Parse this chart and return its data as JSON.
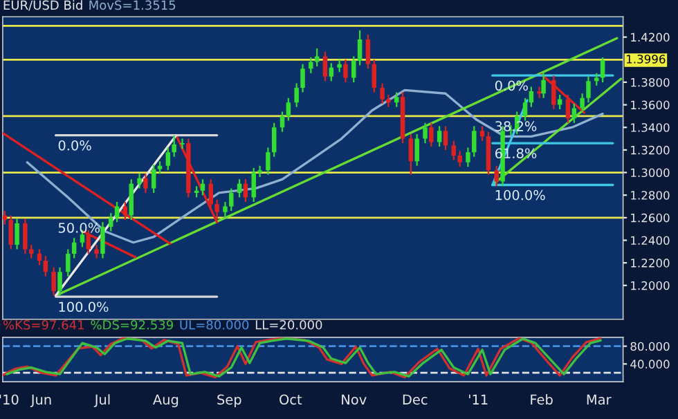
{
  "chart_data": [
    {
      "type": "candlestick",
      "title": "EUR/USD Bid",
      "x": [
        "2010-05-14",
        "2010-05-17",
        "2010-05-20",
        "2010-05-24",
        "2010-05-27",
        "2010-05-31",
        "2010-06-03",
        "2010-06-07",
        "2010-06-10",
        "2010-06-14",
        "2010-06-17",
        "2010-06-21",
        "2010-06-24",
        "2010-06-28",
        "2010-07-01",
        "2010-07-05",
        "2010-07-08",
        "2010-07-12",
        "2010-07-15",
        "2010-07-19",
        "2010-07-22",
        "2010-07-26",
        "2010-07-29",
        "2010-08-02",
        "2010-08-05",
        "2010-08-09",
        "2010-08-12",
        "2010-08-16",
        "2010-08-19",
        "2010-08-23",
        "2010-08-26",
        "2010-08-30",
        "2010-09-02",
        "2010-09-06",
        "2010-09-09",
        "2010-09-13",
        "2010-09-16",
        "2010-09-20",
        "2010-09-23",
        "2010-09-27",
        "2010-09-30",
        "2010-10-04",
        "2010-10-07",
        "2010-10-11",
        "2010-10-14",
        "2010-10-18",
        "2010-10-21",
        "2010-10-25",
        "2010-10-28",
        "2010-11-01",
        "2010-11-04",
        "2010-11-08",
        "2010-11-11",
        "2010-11-15",
        "2010-11-18",
        "2010-11-22",
        "2010-11-25",
        "2010-11-29",
        "2010-12-02",
        "2010-12-06",
        "2010-12-09",
        "2010-12-13",
        "2010-12-16",
        "2010-12-20",
        "2010-12-23",
        "2010-12-27",
        "2010-12-30",
        "2011-01-03",
        "2011-01-06",
        "2011-01-10",
        "2011-01-13",
        "2011-01-17",
        "2011-01-20",
        "2011-01-24",
        "2011-01-27",
        "2011-01-31",
        "2011-02-02",
        "2011-02-07",
        "2011-02-10",
        "2011-02-14",
        "2011-02-17",
        "2011-02-21",
        "2011-02-24",
        "2011-02-28",
        "2011-03-03"
      ],
      "ohlc": [
        [
          1.262,
          1.266,
          1.254,
          1.258
        ],
        [
          1.258,
          1.262,
          1.232,
          1.236
        ],
        [
          1.236,
          1.259,
          1.232,
          1.255
        ],
        [
          1.255,
          1.259,
          1.228,
          1.232
        ],
        [
          1.232,
          1.236,
          1.224,
          1.228
        ],
        [
          1.228,
          1.232,
          1.218,
          1.222
        ],
        [
          1.222,
          1.226,
          1.208,
          1.212
        ],
        [
          1.212,
          1.216,
          1.191,
          1.195
        ],
        [
          1.195,
          1.216,
          1.191,
          1.212
        ],
        [
          1.212,
          1.232,
          1.208,
          1.228
        ],
        [
          1.228,
          1.242,
          1.224,
          1.238
        ],
        [
          1.238,
          1.249,
          1.234,
          1.245
        ],
        [
          1.245,
          1.249,
          1.228,
          1.232
        ],
        [
          1.232,
          1.236,
          1.224,
          1.228
        ],
        [
          1.228,
          1.256,
          1.224,
          1.252
        ],
        [
          1.252,
          1.264,
          1.248,
          1.26
        ],
        [
          1.26,
          1.274,
          1.256,
          1.27
        ],
        [
          1.27,
          1.274,
          1.258,
          1.262
        ],
        [
          1.262,
          1.294,
          1.258,
          1.29
        ],
        [
          1.29,
          1.299,
          1.286,
          1.295
        ],
        [
          1.295,
          1.299,
          1.282,
          1.286
        ],
        [
          1.286,
          1.307,
          1.282,
          1.303
        ],
        [
          1.303,
          1.31,
          1.299,
          1.306
        ],
        [
          1.306,
          1.322,
          1.302,
          1.318
        ],
        [
          1.318,
          1.333,
          1.314,
          1.325
        ],
        [
          1.325,
          1.33,
          1.321,
          1.326
        ],
        [
          1.326,
          1.33,
          1.278,
          1.282
        ],
        [
          1.282,
          1.288,
          1.278,
          1.284
        ],
        [
          1.284,
          1.294,
          1.28,
          1.29
        ],
        [
          1.29,
          1.294,
          1.268,
          1.272
        ],
        [
          1.272,
          1.276,
          1.259,
          1.265
        ],
        [
          1.265,
          1.274,
          1.261,
          1.27
        ],
        [
          1.27,
          1.286,
          1.266,
          1.282
        ],
        [
          1.282,
          1.294,
          1.278,
          1.29
        ],
        [
          1.29,
          1.294,
          1.274,
          1.278
        ],
        [
          1.278,
          1.304,
          1.274,
          1.3
        ],
        [
          1.3,
          1.306,
          1.296,
          1.302
        ],
        [
          1.302,
          1.322,
          1.298,
          1.318
        ],
        [
          1.318,
          1.344,
          1.314,
          1.34
        ],
        [
          1.34,
          1.354,
          1.336,
          1.35
        ],
        [
          1.35,
          1.366,
          1.346,
          1.362
        ],
        [
          1.362,
          1.379,
          1.358,
          1.375
        ],
        [
          1.375,
          1.396,
          1.371,
          1.392
        ],
        [
          1.392,
          1.402,
          1.388,
          1.398
        ],
        [
          1.398,
          1.41,
          1.394,
          1.403
        ],
        [
          1.403,
          1.407,
          1.381,
          1.385
        ],
        [
          1.385,
          1.397,
          1.381,
          1.393
        ],
        [
          1.393,
          1.4,
          1.389,
          1.396
        ],
        [
          1.396,
          1.4,
          1.38,
          1.384
        ],
        [
          1.384,
          1.403,
          1.38,
          1.399
        ],
        [
          1.399,
          1.426,
          1.395,
          1.418
        ],
        [
          1.418,
          1.422,
          1.392,
          1.396
        ],
        [
          1.396,
          1.4,
          1.371,
          1.375
        ],
        [
          1.375,
          1.379,
          1.361,
          1.365
        ],
        [
          1.365,
          1.369,
          1.358,
          1.362
        ],
        [
          1.362,
          1.371,
          1.358,
          1.367
        ],
        [
          1.367,
          1.371,
          1.326,
          1.33
        ],
        [
          1.33,
          1.334,
          1.298,
          1.31
        ],
        [
          1.31,
          1.334,
          1.306,
          1.33
        ],
        [
          1.33,
          1.344,
          1.326,
          1.34
        ],
        [
          1.34,
          1.344,
          1.323,
          1.327
        ],
        [
          1.327,
          1.341,
          1.323,
          1.337
        ],
        [
          1.337,
          1.341,
          1.32,
          1.324
        ],
        [
          1.324,
          1.328,
          1.311,
          1.315
        ],
        [
          1.315,
          1.319,
          1.305,
          1.309
        ],
        [
          1.309,
          1.322,
          1.305,
          1.318
        ],
        [
          1.318,
          1.341,
          1.314,
          1.337
        ],
        [
          1.337,
          1.341,
          1.328,
          1.332
        ],
        [
          1.332,
          1.336,
          1.298,
          1.302
        ],
        [
          1.302,
          1.306,
          1.288,
          1.292
        ],
        [
          1.292,
          1.341,
          1.288,
          1.337
        ],
        [
          1.337,
          1.342,
          1.333,
          1.338
        ],
        [
          1.338,
          1.354,
          1.334,
          1.35
        ],
        [
          1.35,
          1.366,
          1.346,
          1.362
        ],
        [
          1.362,
          1.376,
          1.358,
          1.372
        ],
        [
          1.372,
          1.376,
          1.366,
          1.37
        ],
        [
          1.37,
          1.388,
          1.366,
          1.382
        ],
        [
          1.382,
          1.386,
          1.356,
          1.36
        ],
        [
          1.36,
          1.369,
          1.356,
          1.365
        ],
        [
          1.365,
          1.369,
          1.344,
          1.348
        ],
        [
          1.348,
          1.361,
          1.344,
          1.357
        ],
        [
          1.357,
          1.37,
          1.353,
          1.366
        ],
        [
          1.366,
          1.385,
          1.362,
          1.381
        ],
        [
          1.381,
          1.388,
          1.377,
          1.384
        ],
        [
          1.384,
          1.402,
          1.38,
          1.3996
        ]
      ],
      "series": [
        {
          "type": "line",
          "name": "MovS=1.3515",
          "color": "#8fb0d0",
          "x": [
            "2010-05-25",
            "2010-06-14",
            "2010-07-02",
            "2010-07-16",
            "2010-07-26",
            "2010-08-08",
            "2010-08-27",
            "2010-09-14",
            "2010-09-27",
            "2010-10-14",
            "2010-10-26",
            "2010-11-10",
            "2010-11-26",
            "2010-12-16",
            "2010-12-31",
            "2011-01-14",
            "2011-01-27",
            "2011-02-16",
            "2011-03-03"
          ],
          "values": [
            1.309,
            1.278,
            1.248,
            1.238,
            1.243,
            1.259,
            1.282,
            1.286,
            1.294,
            1.315,
            1.33,
            1.355,
            1.373,
            1.37,
            1.347,
            1.332,
            1.332,
            1.34,
            1.352
          ]
        },
        {
          "type": "line",
          "color": "#66dd33",
          "x": [
            "2010-06-08",
            "2011-03-10"
          ],
          "values": [
            1.191,
            1.419
          ]
        },
        {
          "type": "line",
          "color": "#66dd33",
          "x": [
            "2011-01-08",
            "2011-03-12"
          ],
          "values": [
            1.289,
            1.383
          ]
        },
        {
          "type": "line",
          "color": "#e02020",
          "x": [
            "2010-05-13",
            "2010-08-03"
          ],
          "values": [
            1.335,
            1.237
          ]
        },
        {
          "type": "line",
          "color": "#e02020",
          "x": [
            "2010-06-21",
            "2010-07-17"
          ],
          "values": [
            1.248,
            1.225
          ]
        },
        {
          "type": "line",
          "color": "#e02020",
          "x": [
            "2010-08-06",
            "2010-08-26"
          ],
          "values": [
            1.333,
            1.256
          ]
        },
        {
          "type": "line",
          "color": "#e02020",
          "x": [
            "2011-02-01",
            "2011-02-22"
          ],
          "values": [
            1.387,
            1.353
          ]
        },
        {
          "type": "line",
          "color": "#e8e8e8",
          "x": [
            "2010-06-08",
            "2010-08-06"
          ],
          "values": [
            1.191,
            1.333
          ]
        },
        {
          "type": "line",
          "color": "#d8d8d8",
          "x": [
            "2010-06-08",
            "2010-08-26"
          ],
          "values": [
            1.333,
            1.333
          ]
        },
        {
          "type": "line",
          "color": "#d8d8d8",
          "x": [
            "2010-06-08",
            "2010-08-26"
          ],
          "values": [
            1.19,
            1.19
          ]
        },
        {
          "type": "line",
          "color": "#40c8e8",
          "x": [
            "2011-01-08",
            "2011-01-25"
          ],
          "values": [
            1.289,
            1.364
          ]
        },
        {
          "type": "line",
          "color": "#40c8e8",
          "x": [
            "2011-01-08",
            "2011-03-08"
          ],
          "values": [
            1.386,
            1.386
          ]
        },
        {
          "type": "line",
          "color": "#40c8e8",
          "x": [
            "2011-01-08",
            "2011-03-08"
          ],
          "values": [
            1.326,
            1.326
          ]
        },
        {
          "type": "line",
          "color": "#40c8e8",
          "x": [
            "2011-01-08",
            "2011-03-08"
          ],
          "values": [
            1.289,
            1.289
          ]
        }
      ],
      "ref_lines": [
        {
          "axis": "y",
          "value": 1.43,
          "color": "#e8e84a"
        },
        {
          "axis": "y",
          "value": 1.4,
          "color": "#e8e84a"
        },
        {
          "axis": "y",
          "value": 1.35,
          "color": "#e8e84a"
        },
        {
          "axis": "y",
          "value": 1.3,
          "color": "#e8e84a"
        },
        {
          "axis": "y",
          "value": 1.26,
          "color": "#e8e84a"
        }
      ],
      "annotations": [
        {
          "text": "0.0%",
          "x": "2010-06-08",
          "y": 1.333
        },
        {
          "text": "50.0%",
          "x": "2010-06-08",
          "y": 1.26
        },
        {
          "text": "100.0%",
          "x": "2010-06-08",
          "y": 1.19
        },
        {
          "text": "0.0%",
          "x": "2011-01-08",
          "y": 1.386
        },
        {
          "text": "38.2%",
          "x": "2011-01-08",
          "y": 1.35
        },
        {
          "text": "61.8%",
          "x": "2011-01-08",
          "y": 1.326
        },
        {
          "text": "100.0%",
          "x": "2011-01-08",
          "y": 1.289
        },
        {
          "text": "1.3996",
          "x": "2011-03-03",
          "y": 1.3996
        }
      ],
      "xlim": [
        "2010-05-13",
        "2011-03-13"
      ],
      "xticks": [
        {
          "value": "2010-05-16",
          "label": null
        },
        {
          "value": "2010-06-01",
          "label": null
        },
        {
          "value": "2010-07-01",
          "label": null
        },
        {
          "value": "2010-08-01",
          "label": null
        },
        {
          "value": "2010-09-01",
          "label": null
        },
        {
          "value": "2010-10-01",
          "label": null
        },
        {
          "value": "2010-11-01",
          "label": null
        },
        {
          "value": "2010-12-01",
          "label": null
        },
        {
          "value": "2011-01-01",
          "label": null
        },
        {
          "value": "2011-02-01",
          "label": null
        },
        {
          "value": "2011-03-01",
          "label": null
        }
      ],
      "ylim": [
        1.17,
        1.438
      ],
      "yticks": [
        {
          "value": 1.2,
          "label": "1.2000"
        },
        {
          "value": 1.22,
          "label": "1.2200"
        },
        {
          "value": 1.24,
          "label": "1.2400"
        },
        {
          "value": 1.26,
          "label": "1.2600"
        },
        {
          "value": 1.28,
          "label": "1.2800"
        },
        {
          "value": 1.3,
          "label": "1.3000"
        },
        {
          "value": 1.32,
          "label": "1.3200"
        },
        {
          "value": 1.34,
          "label": "1.3400"
        },
        {
          "value": 1.36,
          "label": "1.3600"
        },
        {
          "value": 1.38,
          "label": "1.3800"
        },
        {
          "value": 1.42,
          "label": "1.4200"
        }
      ],
      "tick_labels": "y",
      "grid": false
    },
    {
      "type": "line",
      "series": [
        {
          "name": "%KS=97.641",
          "color": "#d03030",
          "x": [
            "2010-05-13",
            "2010-05-19",
            "2010-05-25",
            "2010-06-01",
            "2010-06-08",
            "2010-06-19",
            "2010-06-26",
            "2010-06-30",
            "2010-07-05",
            "2010-07-11",
            "2010-07-20",
            "2010-07-25",
            "2010-07-31",
            "2010-08-07",
            "2010-08-11",
            "2010-08-18",
            "2010-08-25",
            "2010-08-31",
            "2010-09-05",
            "2010-09-09",
            "2010-09-14",
            "2010-09-20",
            "2010-09-27",
            "2010-10-08",
            "2010-10-15",
            "2010-10-19",
            "2010-10-26",
            "2010-11-02",
            "2010-11-06",
            "2010-11-10",
            "2010-11-19",
            "2010-11-26",
            "2010-12-03",
            "2010-12-12",
            "2010-12-18",
            "2010-12-25",
            "2011-01-01",
            "2011-01-05",
            "2011-01-12",
            "2011-01-21",
            "2011-01-27",
            "2011-02-03",
            "2011-02-10",
            "2011-02-16",
            "2011-02-23",
            "2011-03-02"
          ],
          "values": [
            15,
            29,
            34,
            20,
            14,
            75,
            79,
            60,
            85,
            98,
            94,
            75,
            94,
            85,
            14,
            20,
            10,
            34,
            80,
            40,
            89,
            94,
            98,
            94,
            77,
            50,
            40,
            79,
            40,
            14,
            22,
            10,
            44,
            74,
            30,
            14,
            74,
            14,
            74,
            98,
            88,
            50,
            14,
            54,
            89,
            98
          ]
        },
        {
          "name": "%DS=92.539",
          "color": "#40c040",
          "x": [
            "2010-05-15",
            "2010-05-21",
            "2010-05-27",
            "2010-06-03",
            "2010-06-10",
            "2010-06-21",
            "2010-06-28",
            "2010-07-02",
            "2010-07-07",
            "2010-07-13",
            "2010-07-22",
            "2010-07-27",
            "2010-08-02",
            "2010-08-09",
            "2010-08-13",
            "2010-08-20",
            "2010-08-27",
            "2010-09-02",
            "2010-09-07",
            "2010-09-11",
            "2010-09-16",
            "2010-09-22",
            "2010-09-29",
            "2010-10-10",
            "2010-10-17",
            "2010-10-21",
            "2010-10-28",
            "2010-11-04",
            "2010-11-08",
            "2010-11-12",
            "2010-11-21",
            "2010-11-28",
            "2010-12-05",
            "2010-12-14",
            "2010-12-20",
            "2010-12-27",
            "2011-01-03",
            "2011-01-07",
            "2011-01-14",
            "2011-01-23",
            "2011-01-29",
            "2011-02-05",
            "2011-02-12",
            "2011-02-18",
            "2011-02-25",
            "2011-03-02"
          ],
          "values": [
            17,
            27,
            32,
            22,
            17,
            87,
            77,
            62,
            87,
            97,
            92,
            77,
            92,
            87,
            17,
            22,
            12,
            32,
            77,
            42,
            87,
            92,
            97,
            92,
            77,
            52,
            42,
            77,
            42,
            17,
            22,
            12,
            42,
            72,
            32,
            17,
            72,
            17,
            72,
            97,
            87,
            52,
            17,
            52,
            87,
            93
          ]
        }
      ],
      "ref_lines": [
        {
          "axis": "y",
          "value": 80,
          "label": "UL=80.000",
          "color": "#4a90e0",
          "line_style": "dashed"
        },
        {
          "axis": "y",
          "value": 20,
          "label": "LL=20.000",
          "color": "#e0e0e0",
          "line_style": "dashed"
        }
      ],
      "xlim": [
        "2010-05-13",
        "2011-03-13"
      ],
      "xticks": [
        {
          "value": "2010-05-16",
          "label": "'10"
        },
        {
          "value": "2010-06-01",
          "label": "Jun"
        },
        {
          "value": "2010-07-01",
          "label": "Jul"
        },
        {
          "value": "2010-08-01",
          "label": "Aug"
        },
        {
          "value": "2010-09-01",
          "label": "Sep"
        },
        {
          "value": "2010-10-01",
          "label": "Oct"
        },
        {
          "value": "2010-11-01",
          "label": "Nov"
        },
        {
          "value": "2010-12-01",
          "label": "Dec"
        },
        {
          "value": "2011-01-01",
          "label": "'11"
        },
        {
          "value": "2011-02-01",
          "label": "Feb"
        },
        {
          "value": "2011-03-01",
          "label": "Mar"
        }
      ],
      "ylim": [
        0,
        100
      ],
      "yticks": [
        {
          "value": 40,
          "label": "40.000"
        },
        {
          "value": 80,
          "label": "80.000"
        }
      ],
      "legend": "top left",
      "grid": false
    }
  ]
}
